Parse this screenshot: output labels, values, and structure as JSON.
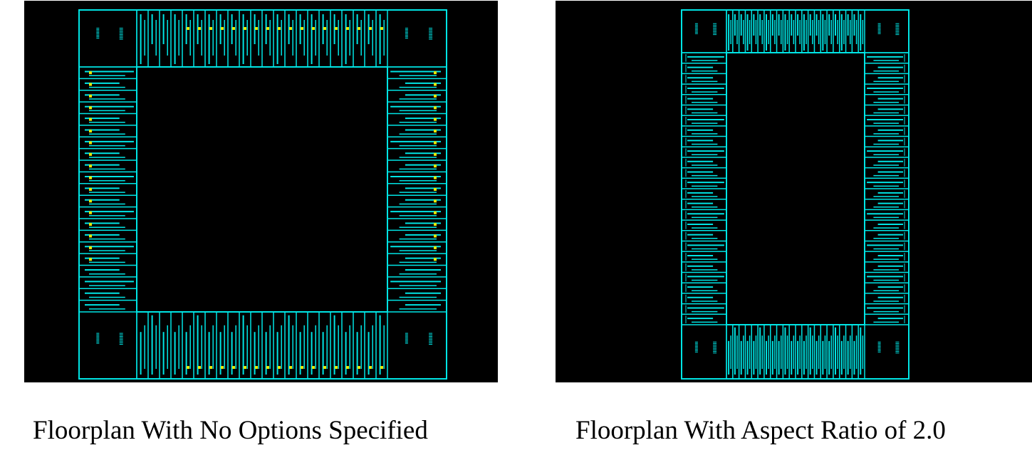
{
  "figures": [
    {
      "caption": "Floorplan With No Options Specified"
    },
    {
      "caption": "Floorplan With Aspect Ratio of 2.0"
    }
  ],
  "colors": {
    "background": "#000000",
    "cell_outline": "#00e5e5",
    "pin_marker": "#e8e800",
    "caption_text": "#000000"
  }
}
